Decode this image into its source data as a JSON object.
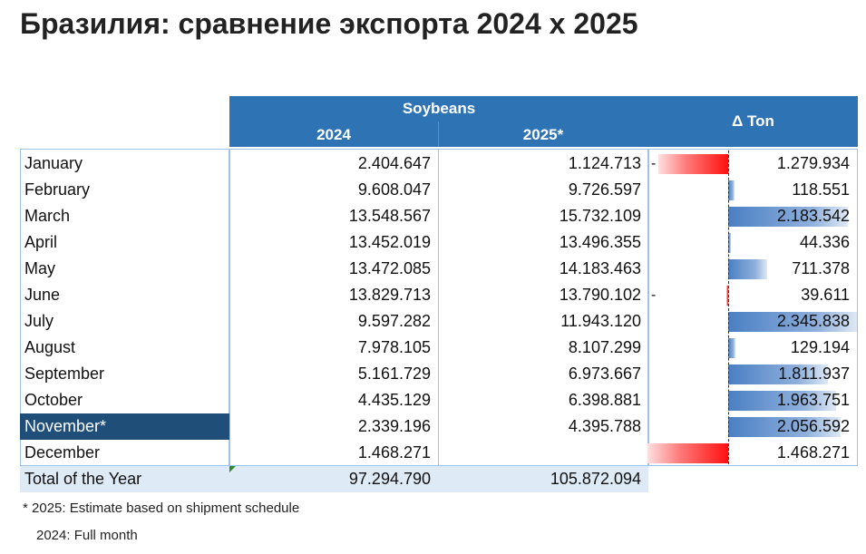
{
  "title": "Бразилия: сравнение экспорта 2024 x 2025",
  "header": {
    "group": "Soybeans",
    "col_2024": "2024",
    "col_2025": "2025*",
    "col_delta": "Δ Ton"
  },
  "rows": [
    {
      "month": "January",
      "v2024": "2.404.647",
      "v2025": "1.124.713",
      "sign": "-",
      "delta": "1.279.934",
      "highlight": false
    },
    {
      "month": "February",
      "v2024": "9.608.047",
      "v2025": "9.726.597",
      "sign": "",
      "delta": "118.551",
      "highlight": false
    },
    {
      "month": "March",
      "v2024": "13.548.567",
      "v2025": "15.732.109",
      "sign": "",
      "delta": "2.183.542",
      "highlight": false
    },
    {
      "month": "April",
      "v2024": "13.452.019",
      "v2025": "13.496.355",
      "sign": "",
      "delta": "44.336",
      "highlight": false
    },
    {
      "month": "May",
      "v2024": "13.472.085",
      "v2025": "14.183.463",
      "sign": "",
      "delta": "711.378",
      "highlight": false
    },
    {
      "month": "June",
      "v2024": "13.829.713",
      "v2025": "13.790.102",
      "sign": "-",
      "delta": "39.611",
      "highlight": false
    },
    {
      "month": "July",
      "v2024": "9.597.282",
      "v2025": "11.943.120",
      "sign": "",
      "delta": "2.345.838",
      "highlight": false
    },
    {
      "month": "August",
      "v2024": "7.978.105",
      "v2025": "8.107.299",
      "sign": "",
      "delta": "129.194",
      "highlight": false
    },
    {
      "month": "September",
      "v2024": "5.161.729",
      "v2025": "6.973.667",
      "sign": "",
      "delta": "1.811.937",
      "highlight": false
    },
    {
      "month": "October",
      "v2024": "4.435.129",
      "v2025": "6.398.881",
      "sign": "",
      "delta": "1.963.751",
      "highlight": false
    },
    {
      "month": "November*",
      "v2024": "2.339.196",
      "v2025": "4.395.788",
      "sign": "",
      "delta": "2.056.592",
      "highlight": true
    },
    {
      "month": "December",
      "v2024": "1.468.271",
      "v2025": "",
      "sign": "-",
      "delta": "1.468.271",
      "highlight": false
    }
  ],
  "total": {
    "label": "Total of the Year",
    "v2024": "97.294.790",
    "v2025": "105.872.094"
  },
  "notes": {
    "note1": "* 2025: Estimate based on shipment schedule",
    "note2": "2024: Full month"
  },
  "colors": {
    "header_bg": "#2e74b5",
    "highlight_bg": "#1f4e79",
    "positive_bar": "#4a7fc3",
    "negative_bar": "#ff1010",
    "total_bg": "#deebf7"
  },
  "chart_data": {
    "type": "table",
    "title": "Бразилия: сравнение экспорта 2024 x 2025",
    "categories": [
      "January",
      "February",
      "March",
      "April",
      "May",
      "June",
      "July",
      "August",
      "September",
      "October",
      "November*",
      "December"
    ],
    "series": [
      {
        "name": "2024",
        "values": [
          2404647,
          9608047,
          13548567,
          13452019,
          13472085,
          13829713,
          9597282,
          7978105,
          5161729,
          4435129,
          2339196,
          1468271
        ]
      },
      {
        "name": "2025*",
        "values": [
          1124713,
          9726597,
          15732109,
          13496355,
          14183463,
          13790102,
          11943120,
          8107299,
          6973667,
          6398881,
          4395788,
          null
        ]
      },
      {
        "name": "Δ Ton",
        "values": [
          -1279934,
          118551,
          2183542,
          44336,
          711378,
          -39611,
          2345838,
          129194,
          1811937,
          1963751,
          2056592,
          -1468271
        ]
      }
    ],
    "totals": {
      "2024": 97294790,
      "2025*": 105872094
    },
    "delta_bar_max": 2345838
  }
}
